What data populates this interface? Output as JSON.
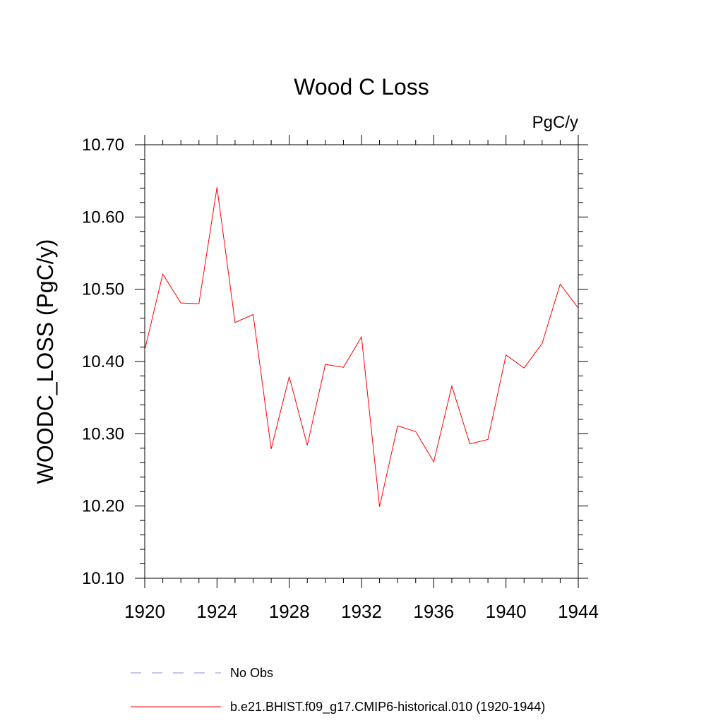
{
  "chart_data": {
    "type": "line",
    "title": "Wood C Loss",
    "units_label": "PgC/y",
    "xlabel": "",
    "ylabel": "WOODC_LOSS  (PgC/y)",
    "xlim": [
      1920,
      1944
    ],
    "ylim": [
      10.1,
      10.7
    ],
    "x_ticks": [
      1920,
      1924,
      1928,
      1932,
      1936,
      1940,
      1944
    ],
    "x_tick_labels": [
      "1920",
      "1924",
      "1928",
      "1932",
      "1936",
      "1940",
      "1944"
    ],
    "y_ticks": [
      10.1,
      10.2,
      10.3,
      10.4,
      10.5,
      10.6,
      10.7
    ],
    "y_tick_labels": [
      "10.10",
      "10.20",
      "10.30",
      "10.40",
      "10.50",
      "10.60",
      "10.70"
    ],
    "grid": false,
    "legend_position": "bottom",
    "series": [
      {
        "name": "b.e21.BHIST.f09_g17.CMIP6-historical.010 (1920-1944)",
        "color": "#ff0000",
        "style": "solid",
        "x": [
          1920,
          1921,
          1922,
          1923,
          1924,
          1925,
          1926,
          1927,
          1928,
          1929,
          1930,
          1931,
          1932,
          1933,
          1934,
          1935,
          1936,
          1937,
          1938,
          1939,
          1940,
          1941,
          1942,
          1943,
          1944
        ],
        "values": [
          10.416,
          10.521,
          10.481,
          10.48,
          10.641,
          10.454,
          10.465,
          10.279,
          10.379,
          10.284,
          10.396,
          10.392,
          10.434,
          10.199,
          10.311,
          10.303,
          10.261,
          10.366,
          10.286,
          10.292,
          10.409,
          10.391,
          10.425,
          10.507,
          10.474
        ]
      }
    ],
    "legend": [
      {
        "label": "No Obs",
        "color": "#8f8fd6",
        "style": "dashed"
      },
      {
        "label": "b.e21.BHIST.f09_g17.CMIP6-historical.010 (1920-1944)",
        "color": "#ff0000",
        "style": "solid"
      }
    ]
  }
}
